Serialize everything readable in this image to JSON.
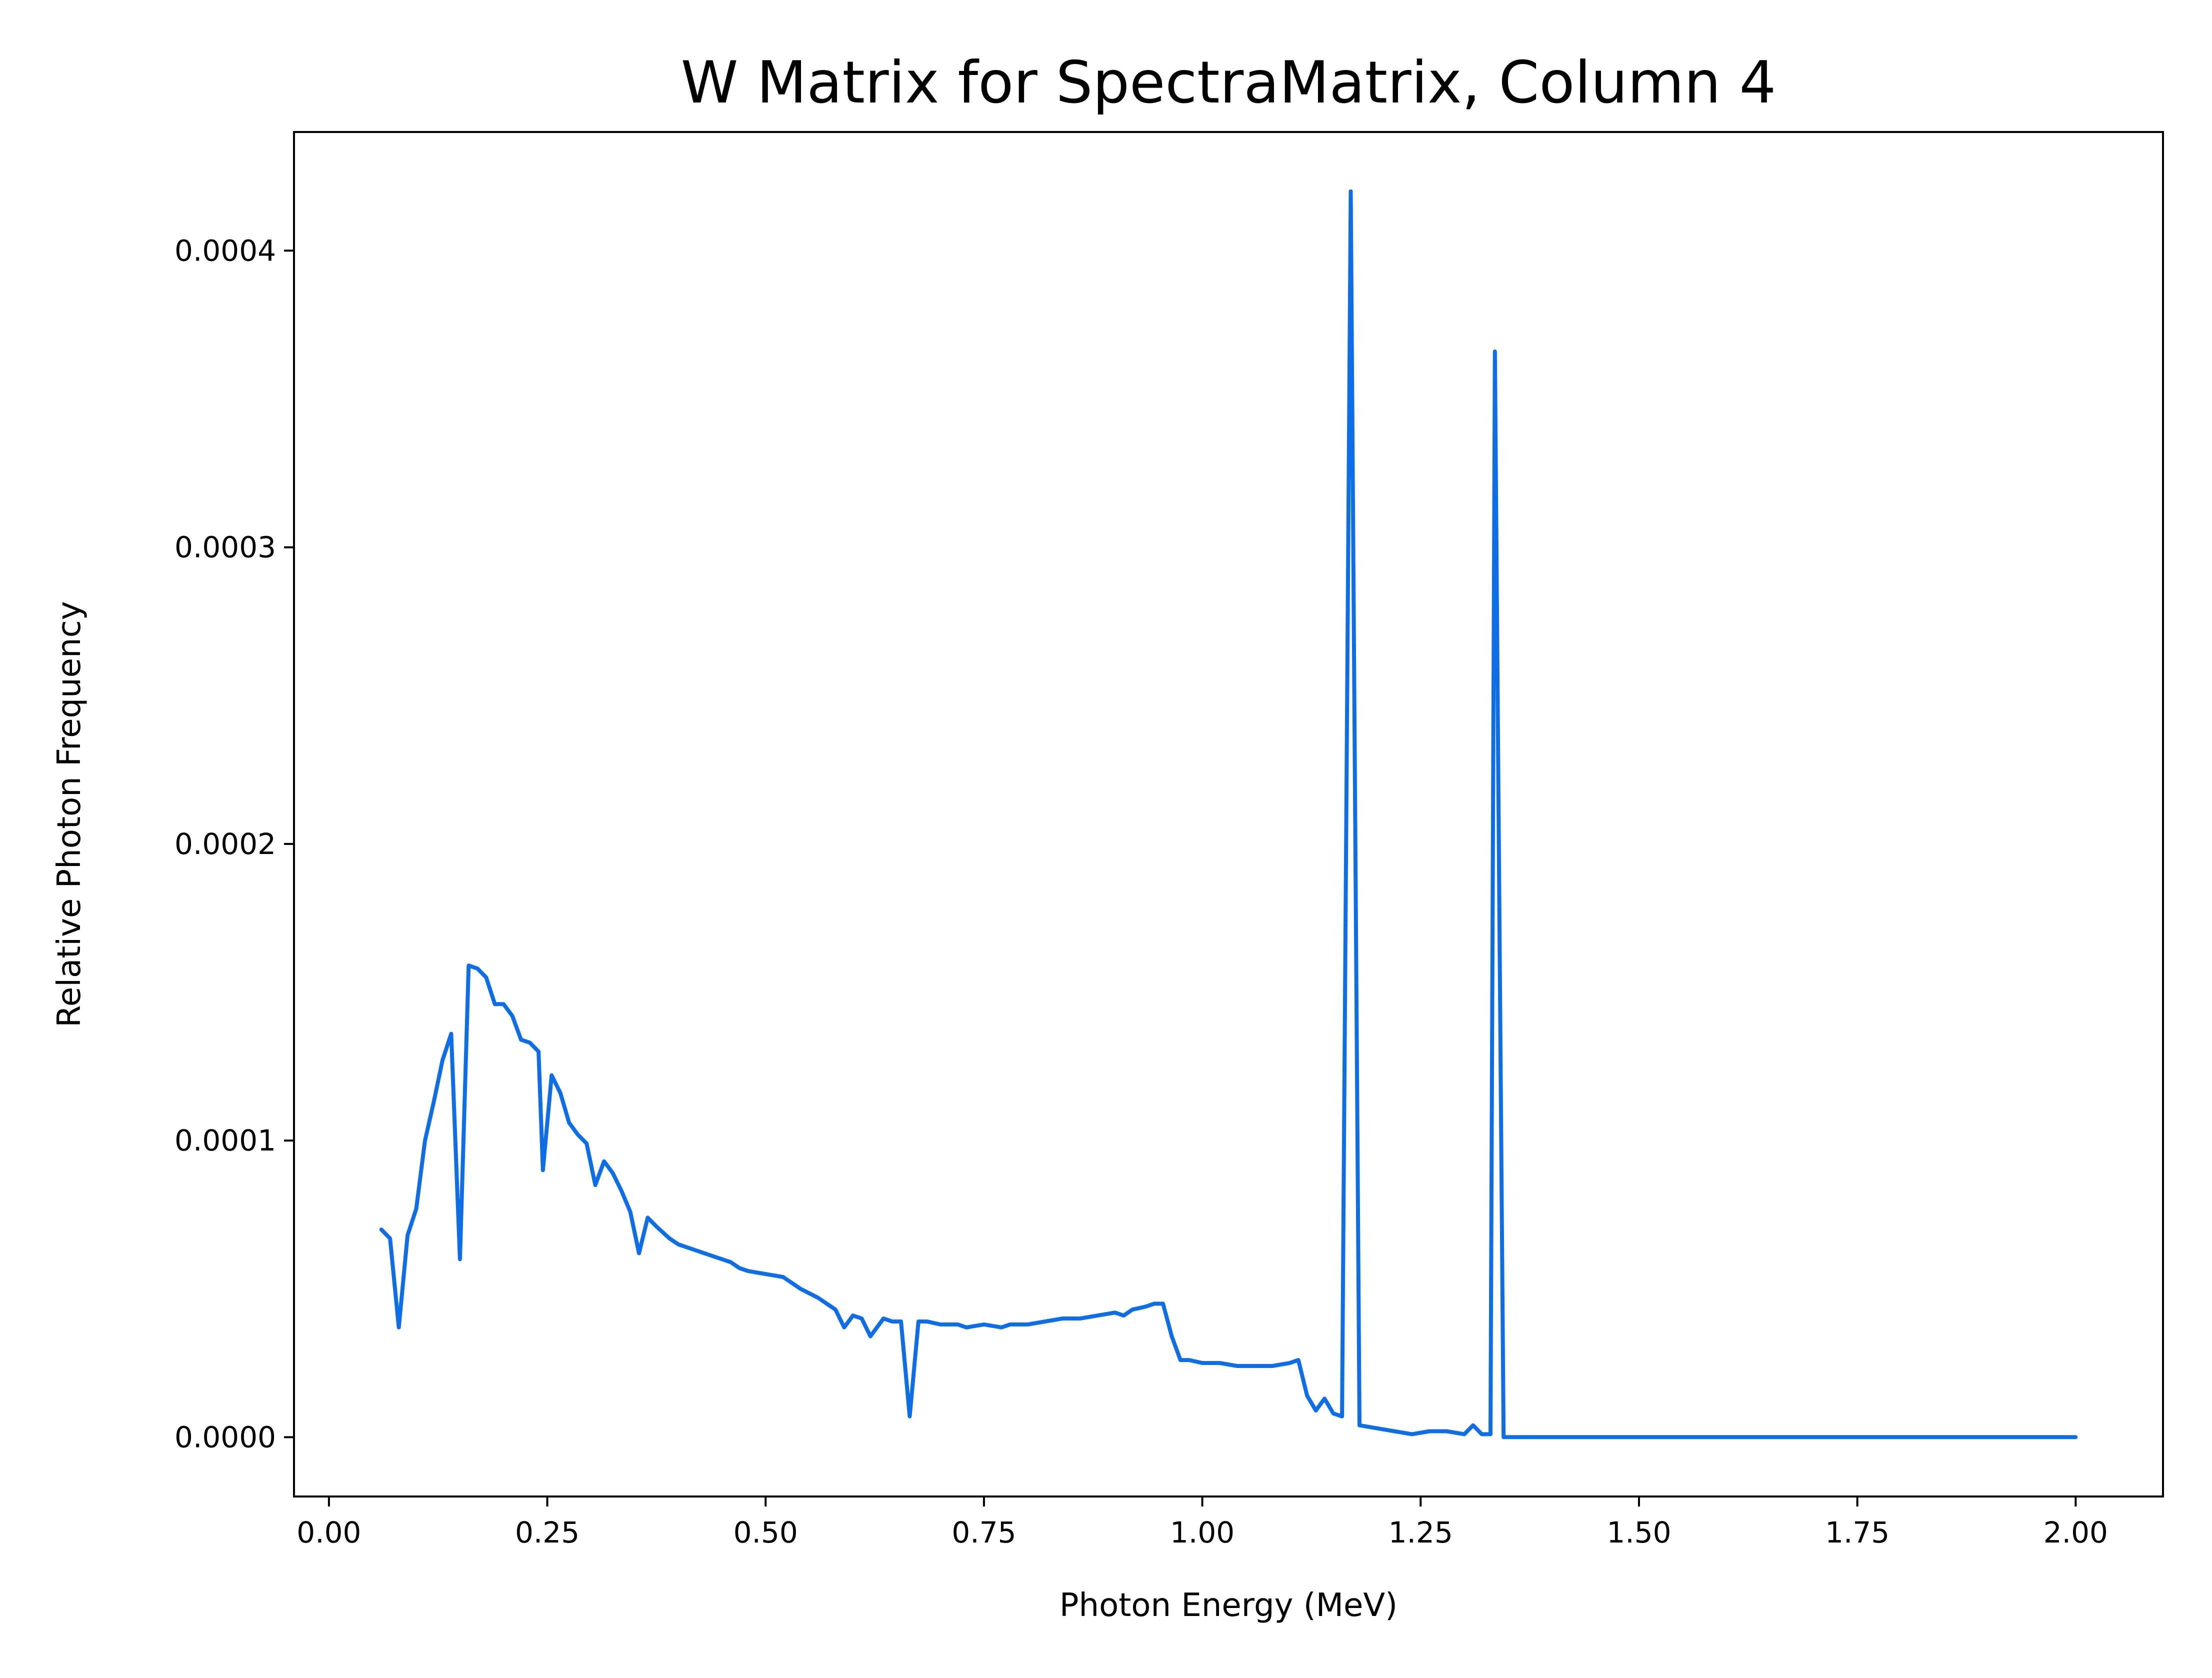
{
  "chart_data": {
    "type": "line",
    "title": "W Matrix for SpectraMatrix, Column 4",
    "xlabel": "Photon Energy (MeV)",
    "ylabel": "Relative Photon Frequency",
    "xlim": [
      -0.04,
      2.1
    ],
    "ylim": [
      -2e-05,
      0.00044
    ],
    "grid": false,
    "legend": "none",
    "xticks": [
      0.0,
      0.25,
      0.5,
      0.75,
      1.0,
      1.25,
      1.5,
      1.75,
      2.0
    ],
    "xtick_labels": [
      "0.00",
      "0.25",
      "0.50",
      "0.75",
      "1.00",
      "1.25",
      "1.50",
      "1.75",
      "2.00"
    ],
    "yticks": [
      0.0,
      0.0001,
      0.0002,
      0.0003,
      0.0004
    ],
    "ytick_labels": [
      "0.0000",
      "0.0001",
      "0.0002",
      "0.0003",
      "0.0004"
    ],
    "series": [
      {
        "color": "#0e6ee8",
        "x": [
          0.06,
          0.07,
          0.08,
          0.09,
          0.1,
          0.11,
          0.12,
          0.13,
          0.14,
          0.15,
          0.16,
          0.17,
          0.18,
          0.19,
          0.2,
          0.21,
          0.22,
          0.23,
          0.24,
          0.245,
          0.255,
          0.265,
          0.275,
          0.285,
          0.295,
          0.305,
          0.315,
          0.325,
          0.335,
          0.345,
          0.355,
          0.365,
          0.375,
          0.39,
          0.4,
          0.42,
          0.44,
          0.46,
          0.47,
          0.48,
          0.5,
          0.52,
          0.54,
          0.56,
          0.58,
          0.59,
          0.6,
          0.61,
          0.62,
          0.635,
          0.645,
          0.655,
          0.665,
          0.675,
          0.685,
          0.7,
          0.72,
          0.73,
          0.75,
          0.77,
          0.78,
          0.8,
          0.82,
          0.84,
          0.86,
          0.88,
          0.9,
          0.91,
          0.92,
          0.935,
          0.945,
          0.955,
          0.965,
          0.975,
          0.985,
          1.0,
          1.02,
          1.04,
          1.06,
          1.08,
          1.1,
          1.11,
          1.12,
          1.13,
          1.14,
          1.15,
          1.16,
          1.17,
          1.18,
          1.2,
          1.22,
          1.24,
          1.26,
          1.28,
          1.3,
          1.31,
          1.32,
          1.33,
          1.335,
          1.345,
          1.36,
          1.4,
          1.5,
          1.75,
          2.0
        ],
        "y": [
          7e-05,
          6.7e-05,
          3.7e-05,
          6.8e-05,
          7.7e-05,
          0.0001,
          0.000113,
          0.000127,
          0.000136,
          6e-05,
          0.000159,
          0.000158,
          0.000155,
          0.000146,
          0.000146,
          0.000142,
          0.000134,
          0.000133,
          0.00013,
          9e-05,
          0.000122,
          0.000116,
          0.000106,
          0.000102,
          9.9e-05,
          8.5e-05,
          9.3e-05,
          8.9e-05,
          8.3e-05,
          7.6e-05,
          6.2e-05,
          7.4e-05,
          7.1e-05,
          6.7e-05,
          6.5e-05,
          6.3e-05,
          6.1e-05,
          5.9e-05,
          5.7e-05,
          5.6e-05,
          5.5e-05,
          5.4e-05,
          5e-05,
          4.7e-05,
          4.3e-05,
          3.7e-05,
          4.1e-05,
          4e-05,
          3.4e-05,
          4e-05,
          3.9e-05,
          3.9e-05,
          7e-06,
          3.9e-05,
          3.9e-05,
          3.8e-05,
          3.8e-05,
          3.7e-05,
          3.8e-05,
          3.7e-05,
          3.8e-05,
          3.8e-05,
          3.9e-05,
          4e-05,
          4e-05,
          4.1e-05,
          4.2e-05,
          4.1e-05,
          4.3e-05,
          4.4e-05,
          4.5e-05,
          4.5e-05,
          3.4e-05,
          2.6e-05,
          2.6e-05,
          2.5e-05,
          2.5e-05,
          2.4e-05,
          2.4e-05,
          2.4e-05,
          2.5e-05,
          2.6e-05,
          1.4e-05,
          9e-06,
          1.3e-05,
          8e-06,
          7e-06,
          0.00042,
          4e-06,
          3e-06,
          2e-06,
          1e-06,
          2e-06,
          2e-06,
          1e-06,
          4e-06,
          1e-06,
          1e-06,
          0.000366,
          0.0,
          0.0,
          0.0,
          0.0,
          0.0,
          0.0
        ]
      }
    ]
  }
}
